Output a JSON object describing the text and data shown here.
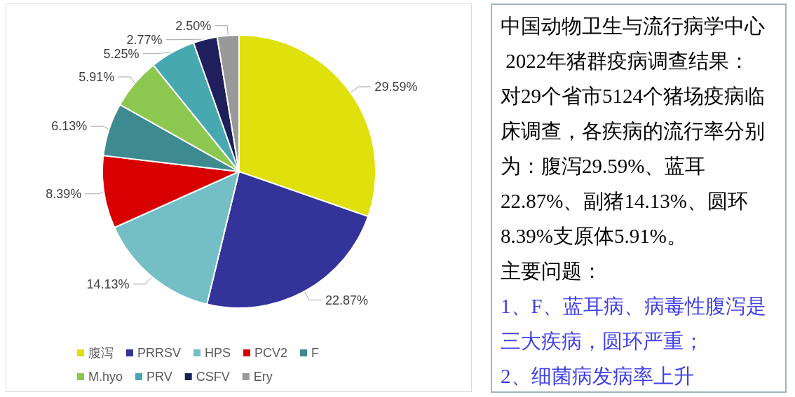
{
  "chart_data": [
    {
      "type": "pie",
      "categories": [
        "腹泻",
        "PRRSV",
        "HPS",
        "PCV2",
        "F",
        "M.hyo",
        "PRV",
        "CSFV",
        "Ery"
      ],
      "values": [
        29.59,
        22.87,
        14.13,
        8.39,
        6.13,
        5.91,
        5.25,
        2.77,
        2.5
      ],
      "colors": [
        "#e0e00c",
        "#333399",
        "#74bec6",
        "#d80000",
        "#3d8a90",
        "#8cc850",
        "#48a8b0",
        "#1f1f5c",
        "#999999"
      ],
      "value_labels": [
        "29.59%",
        "22.87%",
        "14.13%",
        "8.39%",
        "6.13%",
        "5.91%",
        "5.25%",
        "2.77%",
        "2.50%"
      ],
      "legend": "bottom"
    },
    {
      "type": "other",
      "title": "中国动物卫生与流行病学中心\n 2022年猪群疫病调查结果：",
      "annotations": [
        "对29个省市5124个猪场疫病临床调查，各疾病的流行率分别为：腹泻29.59%、蓝耳22.87%、副猪14.13%、圆环8.39%支原体5.91%。",
        "主要问题：",
        "1、F、蓝耳病、病毒性腹泻是三大疾病，圆环严重；",
        "2、细菌病发病率上升"
      ]
    }
  ]
}
